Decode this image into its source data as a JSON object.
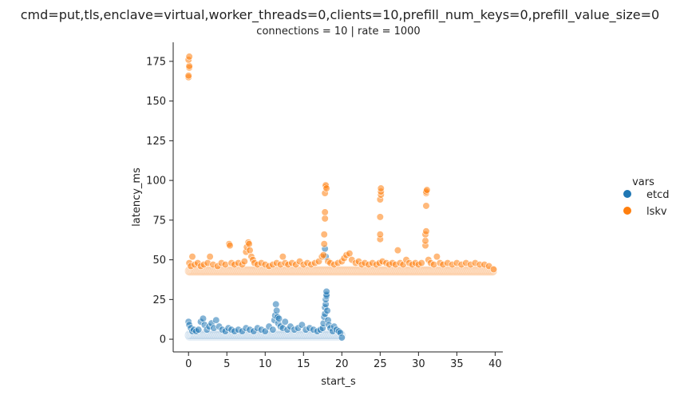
{
  "chart_data": {
    "type": "scatter",
    "suptitle": "cmd=put,tls,enclave=virtual,worker_threads=0,clients=10,prefill_num_keys=0,prefill_value_size=0",
    "title": "connections = 10 | rate = 1000",
    "xlabel": "start_s",
    "ylabel": "latency_ms",
    "xlim": [
      -2,
      41
    ],
    "ylim": [
      -8,
      187
    ],
    "xticks": [
      0,
      5,
      10,
      15,
      20,
      25,
      30,
      35,
      40
    ],
    "yticks": [
      0,
      25,
      50,
      75,
      100,
      125,
      150,
      175
    ],
    "grid": false,
    "legend": {
      "title": "vars",
      "placement": "right"
    },
    "series": [
      {
        "name": "etcd",
        "color": "#1f77b4",
        "band": {
          "x": [
            0,
            20
          ],
          "y": [
            0,
            5
          ]
        },
        "points": [
          [
            0.0,
            11
          ],
          [
            0.1,
            9
          ],
          [
            0.3,
            7
          ],
          [
            0.5,
            5
          ],
          [
            0.7,
            6
          ],
          [
            1.0,
            5
          ],
          [
            1.3,
            6
          ],
          [
            1.6,
            11
          ],
          [
            1.9,
            13
          ],
          [
            2.1,
            9
          ],
          [
            2.4,
            6
          ],
          [
            2.7,
            8
          ],
          [
            3.0,
            10
          ],
          [
            3.3,
            7
          ],
          [
            3.6,
            12
          ],
          [
            4.0,
            8
          ],
          [
            4.4,
            6
          ],
          [
            4.8,
            5
          ],
          [
            5.2,
            7
          ],
          [
            5.6,
            6
          ],
          [
            6.0,
            5
          ],
          [
            6.5,
            6
          ],
          [
            7.0,
            5
          ],
          [
            7.5,
            7
          ],
          [
            8.0,
            6
          ],
          [
            8.5,
            5
          ],
          [
            9.0,
            7
          ],
          [
            9.5,
            6
          ],
          [
            10.0,
            5
          ],
          [
            10.5,
            8
          ],
          [
            11.0,
            6
          ],
          [
            11.2,
            12
          ],
          [
            11.3,
            15
          ],
          [
            11.4,
            22
          ],
          [
            11.5,
            18
          ],
          [
            11.6,
            14
          ],
          [
            11.7,
            10
          ],
          [
            11.8,
            13
          ],
          [
            12.0,
            8
          ],
          [
            12.3,
            7
          ],
          [
            12.6,
            11
          ],
          [
            12.9,
            6
          ],
          [
            13.3,
            8
          ],
          [
            13.8,
            6
          ],
          [
            14.3,
            7
          ],
          [
            14.8,
            9
          ],
          [
            15.3,
            6
          ],
          [
            15.8,
            7
          ],
          [
            16.3,
            6
          ],
          [
            16.8,
            5
          ],
          [
            17.2,
            6
          ],
          [
            17.5,
            7
          ],
          [
            17.6,
            10
          ],
          [
            17.7,
            14
          ],
          [
            17.8,
            16
          ],
          [
            17.8,
            20
          ],
          [
            17.9,
            22
          ],
          [
            17.9,
            25
          ],
          [
            18.0,
            27
          ],
          [
            18.0,
            28
          ],
          [
            18.0,
            30
          ],
          [
            17.8,
            57
          ],
          [
            17.9,
            52
          ],
          [
            18.1,
            18
          ],
          [
            18.2,
            12
          ],
          [
            18.3,
            9
          ],
          [
            18.5,
            7
          ],
          [
            18.8,
            5
          ],
          [
            19.0,
            8
          ],
          [
            19.3,
            6
          ],
          [
            19.6,
            5
          ],
          [
            19.8,
            4
          ],
          [
            20.0,
            1
          ]
        ]
      },
      {
        "name": "lskv",
        "color": "#ff7f0e",
        "band": {
          "x": [
            0,
            39.8
          ],
          "y": [
            41,
            45
          ]
        },
        "points": [
          [
            0.0,
            165
          ],
          [
            0.0,
            166
          ],
          [
            0.1,
            171
          ],
          [
            0.1,
            172
          ],
          [
            0.0,
            176
          ],
          [
            0.1,
            178
          ],
          [
            0.1,
            48
          ],
          [
            0.3,
            46
          ],
          [
            0.5,
            52
          ],
          [
            0.8,
            47
          ],
          [
            1.2,
            48
          ],
          [
            1.6,
            46
          ],
          [
            2.0,
            47
          ],
          [
            2.5,
            48
          ],
          [
            2.8,
            52
          ],
          [
            3.2,
            47
          ],
          [
            3.8,
            46
          ],
          [
            4.3,
            48
          ],
          [
            4.8,
            47
          ],
          [
            5.3,
            60
          ],
          [
            5.4,
            59
          ],
          [
            5.6,
            48
          ],
          [
            6.0,
            47
          ],
          [
            6.5,
            48
          ],
          [
            7.0,
            47
          ],
          [
            7.3,
            49
          ],
          [
            7.5,
            55
          ],
          [
            7.6,
            58
          ],
          [
            7.8,
            61
          ],
          [
            7.9,
            60
          ],
          [
            8.0,
            56
          ],
          [
            8.2,
            52
          ],
          [
            8.4,
            50
          ],
          [
            8.6,
            48
          ],
          [
            9.0,
            47
          ],
          [
            9.5,
            48
          ],
          [
            10.0,
            47
          ],
          [
            10.5,
            46
          ],
          [
            11.0,
            47
          ],
          [
            11.5,
            48
          ],
          [
            12.0,
            47
          ],
          [
            12.3,
            52
          ],
          [
            12.6,
            48
          ],
          [
            13.0,
            47
          ],
          [
            13.5,
            48
          ],
          [
            14.0,
            47
          ],
          [
            14.5,
            49
          ],
          [
            15.0,
            47
          ],
          [
            15.5,
            48
          ],
          [
            16.0,
            47
          ],
          [
            16.5,
            48
          ],
          [
            17.0,
            49
          ],
          [
            17.4,
            52
          ],
          [
            17.6,
            53
          ],
          [
            17.7,
            60
          ],
          [
            17.7,
            66
          ],
          [
            17.8,
            76
          ],
          [
            17.8,
            80
          ],
          [
            17.8,
            92
          ],
          [
            17.9,
            96
          ],
          [
            17.9,
            97
          ],
          [
            18.0,
            95
          ],
          [
            18.2,
            49
          ],
          [
            18.5,
            48
          ],
          [
            19.0,
            47
          ],
          [
            19.5,
            48
          ],
          [
            20.0,
            49
          ],
          [
            20.3,
            51
          ],
          [
            20.6,
            53
          ],
          [
            21.0,
            54
          ],
          [
            21.3,
            50
          ],
          [
            21.8,
            48
          ],
          [
            22.2,
            49
          ],
          [
            22.6,
            47
          ],
          [
            23.0,
            48
          ],
          [
            23.5,
            47
          ],
          [
            24.0,
            48
          ],
          [
            24.5,
            47
          ],
          [
            24.9,
            48
          ],
          [
            25.0,
            63
          ],
          [
            25.0,
            66
          ],
          [
            25.0,
            77
          ],
          [
            25.0,
            88
          ],
          [
            25.1,
            91
          ],
          [
            25.1,
            93
          ],
          [
            25.1,
            95
          ],
          [
            25.3,
            49
          ],
          [
            25.8,
            48
          ],
          [
            26.2,
            47
          ],
          [
            26.6,
            48
          ],
          [
            27.0,
            47
          ],
          [
            27.3,
            56
          ],
          [
            27.6,
            48
          ],
          [
            28.0,
            47
          ],
          [
            28.4,
            50
          ],
          [
            28.8,
            48
          ],
          [
            29.2,
            47
          ],
          [
            29.6,
            48
          ],
          [
            30.0,
            47
          ],
          [
            30.4,
            48
          ],
          [
            30.9,
            59
          ],
          [
            30.9,
            62
          ],
          [
            30.9,
            66
          ],
          [
            31.0,
            68
          ],
          [
            31.0,
            84
          ],
          [
            31.0,
            92
          ],
          [
            31.0,
            93
          ],
          [
            31.1,
            94
          ],
          [
            31.3,
            50
          ],
          [
            31.6,
            48
          ],
          [
            32.0,
            47
          ],
          [
            32.4,
            52
          ],
          [
            32.8,
            48
          ],
          [
            33.2,
            47
          ],
          [
            33.8,
            48
          ],
          [
            34.4,
            47
          ],
          [
            35.0,
            48
          ],
          [
            35.6,
            47
          ],
          [
            36.2,
            48
          ],
          [
            36.8,
            47
          ],
          [
            37.4,
            48
          ],
          [
            38.0,
            47
          ],
          [
            38.6,
            47
          ],
          [
            39.2,
            46
          ],
          [
            39.8,
            44
          ]
        ]
      }
    ]
  }
}
